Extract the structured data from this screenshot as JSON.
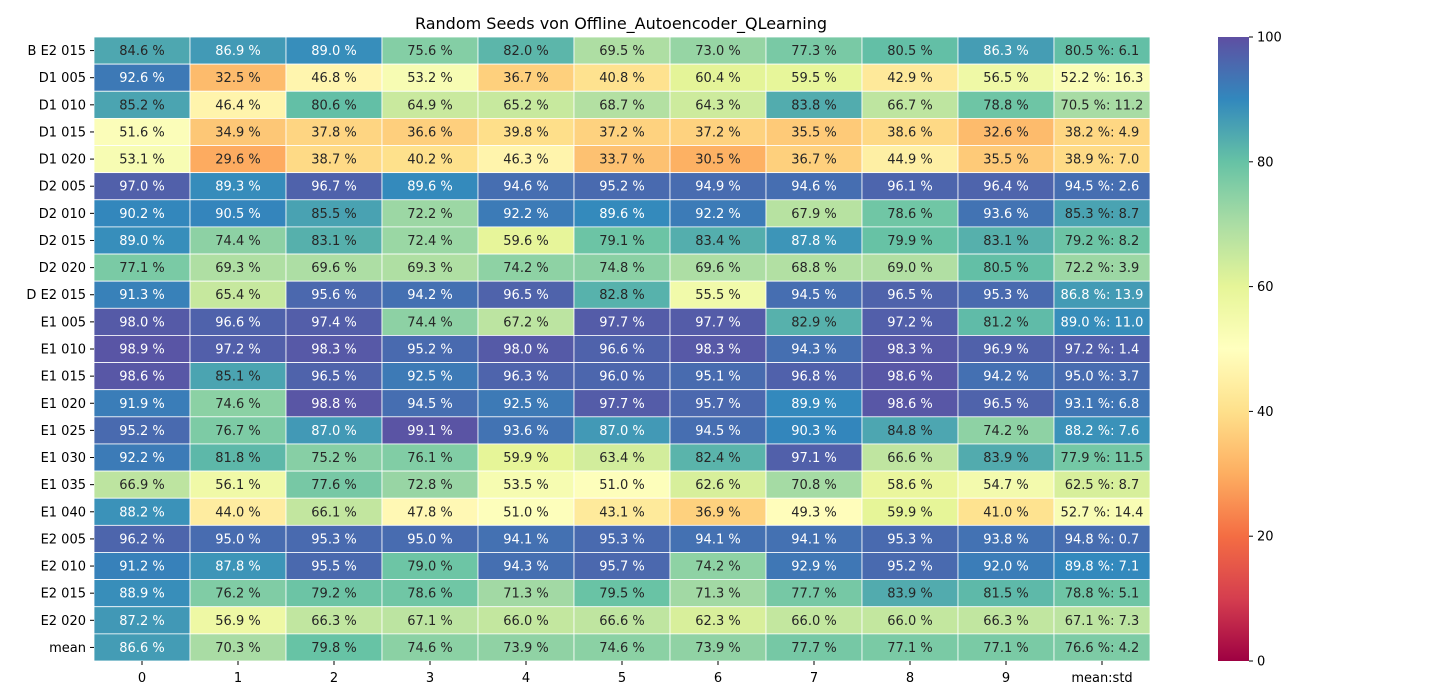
{
  "chart_data": {
    "type": "heatmap",
    "title": "Random Seeds von Offline_Autoencoder_QLearning",
    "xlabel": "",
    "ylabel": "",
    "columns": [
      "0",
      "1",
      "2",
      "3",
      "4",
      "5",
      "6",
      "7",
      "8",
      "9",
      "mean:std"
    ],
    "rows": [
      {
        "label": "B E2 015",
        "values": [
          84.6,
          86.9,
          89.0,
          75.6,
          82.0,
          69.5,
          73.0,
          77.3,
          80.5,
          86.3
        ],
        "mean": 80.5,
        "std": 6.1
      },
      {
        "label": "D1 005",
        "values": [
          92.6,
          32.5,
          46.8,
          53.2,
          36.7,
          40.8,
          60.4,
          59.5,
          42.9,
          56.5
        ],
        "mean": 52.2,
        "std": 16.3
      },
      {
        "label": "D1 010",
        "values": [
          85.2,
          46.4,
          80.6,
          64.9,
          65.2,
          68.7,
          64.3,
          83.8,
          66.7,
          78.8
        ],
        "mean": 70.5,
        "std": 11.2
      },
      {
        "label": "D1 015",
        "values": [
          51.6,
          34.9,
          37.8,
          36.6,
          39.8,
          37.2,
          37.2,
          35.5,
          38.6,
          32.6
        ],
        "mean": 38.2,
        "std": 4.9
      },
      {
        "label": "D1 020",
        "values": [
          53.1,
          29.6,
          38.7,
          40.2,
          46.3,
          33.7,
          30.5,
          36.7,
          44.9,
          35.5
        ],
        "mean": 38.9,
        "std": 7.0
      },
      {
        "label": "D2 005",
        "values": [
          97.0,
          89.3,
          96.7,
          89.6,
          94.6,
          95.2,
          94.9,
          94.6,
          96.1,
          96.4
        ],
        "mean": 94.5,
        "std": 2.6
      },
      {
        "label": "D2 010",
        "values": [
          90.2,
          90.5,
          85.5,
          72.2,
          92.2,
          89.6,
          92.2,
          67.9,
          78.6,
          93.6
        ],
        "mean": 85.3,
        "std": 8.7
      },
      {
        "label": "D2 015",
        "values": [
          89.0,
          74.4,
          83.1,
          72.4,
          59.6,
          79.1,
          83.4,
          87.8,
          79.9,
          83.1
        ],
        "mean": 79.2,
        "std": 8.2
      },
      {
        "label": "D2 020",
        "values": [
          77.1,
          69.3,
          69.6,
          69.3,
          74.2,
          74.8,
          69.6,
          68.8,
          69.0,
          80.5
        ],
        "mean": 72.2,
        "std": 3.9
      },
      {
        "label": "D E2 015",
        "values": [
          91.3,
          65.4,
          95.6,
          94.2,
          96.5,
          82.8,
          55.5,
          94.5,
          96.5,
          95.3
        ],
        "mean": 86.8,
        "std": 13.9
      },
      {
        "label": "E1 005",
        "values": [
          98.0,
          96.6,
          97.4,
          74.4,
          67.2,
          97.7,
          97.7,
          82.9,
          97.2,
          81.2
        ],
        "mean": 89.0,
        "std": 11.0
      },
      {
        "label": "E1 010",
        "values": [
          98.9,
          97.2,
          98.3,
          95.2,
          98.0,
          96.6,
          98.3,
          94.3,
          98.3,
          96.9
        ],
        "mean": 97.2,
        "std": 1.4
      },
      {
        "label": "E1 015",
        "values": [
          98.6,
          85.1,
          96.5,
          92.5,
          96.3,
          96.0,
          95.1,
          96.8,
          98.6,
          94.2
        ],
        "mean": 95.0,
        "std": 3.7
      },
      {
        "label": "E1 020",
        "values": [
          91.9,
          74.6,
          98.8,
          94.5,
          92.5,
          97.7,
          95.7,
          89.9,
          98.6,
          96.5
        ],
        "mean": 93.1,
        "std": 6.8
      },
      {
        "label": "E1 025",
        "values": [
          95.2,
          76.7,
          87.0,
          99.1,
          93.6,
          87.0,
          94.5,
          90.3,
          84.8,
          74.2
        ],
        "mean": 88.2,
        "std": 7.6
      },
      {
        "label": "E1 030",
        "values": [
          92.2,
          81.8,
          75.2,
          76.1,
          59.9,
          63.4,
          82.4,
          97.1,
          66.6,
          83.9
        ],
        "mean": 77.9,
        "std": 11.5
      },
      {
        "label": "E1 035",
        "values": [
          66.9,
          56.1,
          77.6,
          72.8,
          53.5,
          51.0,
          62.6,
          70.8,
          58.6,
          54.7
        ],
        "mean": 62.5,
        "std": 8.7
      },
      {
        "label": "E1 040",
        "values": [
          88.2,
          44.0,
          66.1,
          47.8,
          51.0,
          43.1,
          36.9,
          49.3,
          59.9,
          41.0
        ],
        "mean": 52.7,
        "std": 14.4
      },
      {
        "label": "E2 005",
        "values": [
          96.2,
          95.0,
          95.3,
          95.0,
          94.1,
          95.3,
          94.1,
          94.1,
          95.3,
          93.8
        ],
        "mean": 94.8,
        "std": 0.7
      },
      {
        "label": "E2 010",
        "values": [
          91.2,
          87.8,
          95.5,
          79.0,
          94.3,
          95.7,
          74.2,
          92.9,
          95.2,
          92.0
        ],
        "mean": 89.8,
        "std": 7.1
      },
      {
        "label": "E2 015",
        "values": [
          88.9,
          76.2,
          79.2,
          78.6,
          71.3,
          79.5,
          71.3,
          77.7,
          83.9,
          81.5
        ],
        "mean": 78.8,
        "std": 5.1
      },
      {
        "label": "E2 020",
        "values": [
          87.2,
          56.9,
          66.3,
          67.1,
          66.0,
          66.6,
          62.3,
          66.0,
          66.0,
          66.3
        ],
        "mean": 67.1,
        "std": 7.3
      },
      {
        "label": "mean",
        "values": [
          86.6,
          70.3,
          79.8,
          74.6,
          73.9,
          74.6,
          73.9,
          77.7,
          77.1,
          77.1
        ],
        "mean": 76.6,
        "std": 4.2
      }
    ],
    "value_suffix": " %",
    "colorbar": {
      "colormap": "Spectral",
      "range": [
        0,
        100
      ],
      "ticks": [
        0,
        20,
        40,
        60,
        80,
        100
      ]
    }
  }
}
